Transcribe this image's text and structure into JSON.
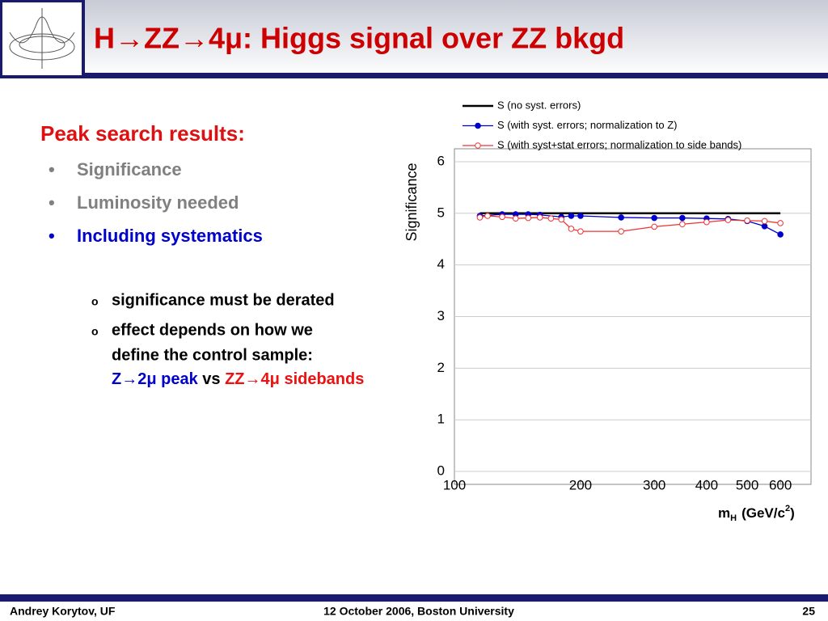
{
  "header": {
    "title": "H→ZZ→4μ: Higgs signal over ZZ bkgd"
  },
  "body": {
    "heading": "Peak search results:",
    "bullets": [
      "Significance",
      "Luminosity needed",
      "Including systematics"
    ],
    "sub_bullets": [
      "significance must be derated",
      "effect depends on how we",
      "define the control sample:"
    ],
    "control_sample": [
      "Z→2μ peak",
      "vs",
      "ZZ→4μ sidebands"
    ]
  },
  "chart_data": {
    "type": "line",
    "ylabel": "Significance",
    "xlabel": {
      "main": "m",
      "sub": "H",
      "unit": "(GeV/c",
      "sup": "2",
      "close": ")"
    },
    "log_x": true,
    "grid": true,
    "xlim": [
      100,
      710
    ],
    "xticks": [
      100,
      200,
      300,
      400,
      500,
      600
    ],
    "ylim": [
      -0.25,
      6.25
    ],
    "yticks": [
      0,
      1,
      2,
      3,
      4,
      5,
      6
    ],
    "series": [
      {
        "name": "S (no syst. errors)",
        "color": "#000000",
        "marker": "none",
        "x": [
          115,
          600
        ],
        "values": [
          5.0,
          5.0
        ]
      },
      {
        "name": "S (with syst. errors; normalization to Z)",
        "color": "#0000cc",
        "marker": "filled",
        "x": [
          115,
          130,
          140,
          150,
          160,
          180,
          190,
          200,
          250,
          300,
          350,
          400,
          450,
          500,
          550,
          600
        ],
        "values": [
          4.95,
          4.98,
          4.98,
          4.98,
          4.97,
          4.93,
          4.95,
          4.95,
          4.92,
          4.91,
          4.91,
          4.9,
          4.89,
          4.85,
          4.75,
          4.59
        ]
      },
      {
        "name": "S (with syst+stat errors; normalization to side bands)",
        "color": "#ee3333",
        "marker": "open",
        "x": [
          115,
          120,
          130,
          140,
          150,
          160,
          170,
          180,
          190,
          200,
          250,
          300,
          350,
          400,
          450,
          500,
          550,
          600
        ],
        "values": [
          4.92,
          4.95,
          4.93,
          4.9,
          4.91,
          4.92,
          4.9,
          4.88,
          4.7,
          4.65,
          4.65,
          4.74,
          4.79,
          4.83,
          4.87,
          4.86,
          4.85,
          4.81
        ]
      }
    ]
  },
  "footer": {
    "author": "Andrey Korytov, UF",
    "event": "12 October 2006, Boston University",
    "page": "25"
  }
}
